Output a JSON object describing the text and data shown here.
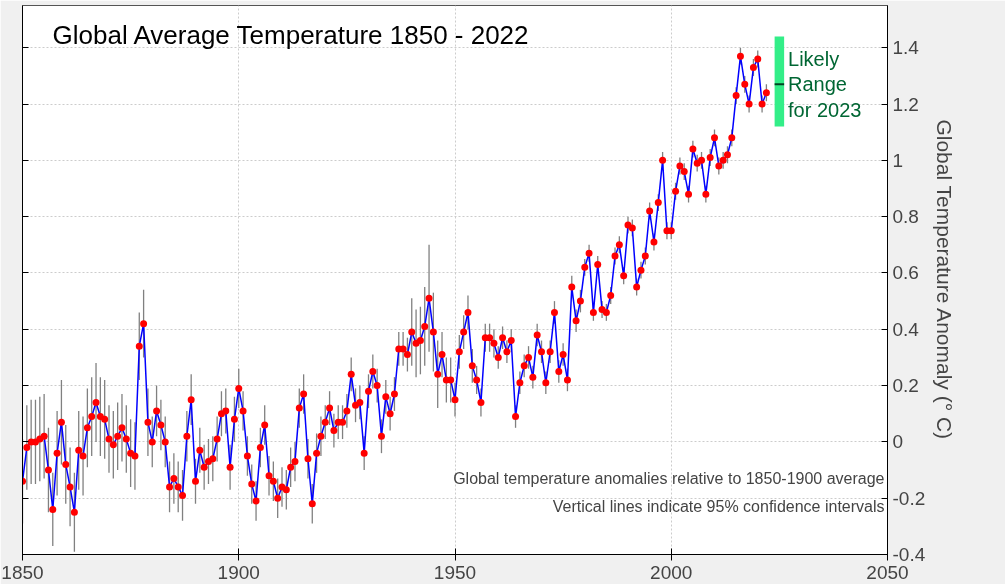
{
  "chart_data": {
    "type": "line",
    "title": "Global Average Temperature 1850 - 2022",
    "ylabel": "Global Temperature Anomaly (° C)",
    "xlim": [
      1850,
      2050
    ],
    "xticks": [
      1850,
      1900,
      1950,
      2000,
      2050
    ],
    "ylim": [
      -0.4,
      1.55
    ],
    "yticks": [
      -0.4,
      -0.2,
      0,
      0.2,
      0.4,
      0.6,
      0.8,
      1,
      1.2,
      1.4
    ],
    "grid": true,
    "marker": "circle",
    "line_style": "solid",
    "annotations": [
      "Global temperature anomalies relative to 1850-1900 average",
      "Vertical lines indicate 95% confidence intervals"
    ],
    "series": [
      {
        "color": "#0000ff",
        "x": [
          1850,
          1851,
          1852,
          1853,
          1854,
          1855,
          1856,
          1857,
          1858,
          1859,
          1860,
          1861,
          1862,
          1863,
          1864,
          1865,
          1866,
          1867,
          1868,
          1869,
          1870,
          1871,
          1872,
          1873,
          1874,
          1875,
          1876,
          1877,
          1878,
          1879,
          1880,
          1881,
          1882,
          1883,
          1884,
          1885,
          1886,
          1887,
          1888,
          1889,
          1890,
          1891,
          1892,
          1893,
          1894,
          1895,
          1896,
          1897,
          1898,
          1899,
          1900,
          1901,
          1902,
          1903,
          1904,
          1905,
          1906,
          1907,
          1908,
          1909,
          1910,
          1911,
          1912,
          1913,
          1914,
          1915,
          1916,
          1917,
          1918,
          1919,
          1920,
          1921,
          1922,
          1923,
          1924,
          1925,
          1926,
          1927,
          1928,
          1929,
          1930,
          1931,
          1932,
          1933,
          1934,
          1935,
          1936,
          1937,
          1938,
          1939,
          1940,
          1941,
          1942,
          1943,
          1944,
          1945,
          1946,
          1947,
          1948,
          1949,
          1950,
          1951,
          1952,
          1953,
          1954,
          1955,
          1956,
          1957,
          1958,
          1959,
          1960,
          1961,
          1962,
          1963,
          1964,
          1965,
          1966,
          1967,
          1968,
          1969,
          1970,
          1971,
          1972,
          1973,
          1974,
          1975,
          1976,
          1977,
          1978,
          1979,
          1980,
          1981,
          1982,
          1983,
          1984,
          1985,
          1986,
          1987,
          1988,
          1989,
          1990,
          1991,
          1992,
          1993,
          1994,
          1995,
          1996,
          1997,
          1998,
          1999,
          2000,
          2001,
          2002,
          2003,
          2004,
          2005,
          2006,
          2007,
          2008,
          2009,
          2010,
          2011,
          2012,
          2013,
          2014,
          2015,
          2016,
          2017,
          2018,
          2019,
          2020,
          2021,
          2022
        ],
        "values": [
          -0.14,
          -0.02,
          0.0,
          0.0,
          0.01,
          0.02,
          -0.1,
          -0.24,
          -0.04,
          0.07,
          -0.08,
          -0.16,
          -0.25,
          -0.03,
          -0.05,
          0.05,
          0.09,
          0.14,
          0.09,
          0.08,
          0.01,
          -0.01,
          0.02,
          0.05,
          0.01,
          -0.04,
          -0.05,
          0.34,
          0.42,
          0.07,
          0.0,
          0.11,
          0.06,
          0.0,
          -0.16,
          -0.13,
          -0.16,
          -0.19,
          0.02,
          0.15,
          -0.14,
          -0.03,
          -0.09,
          -0.07,
          -0.06,
          0.01,
          0.1,
          0.11,
          -0.09,
          0.08,
          0.19,
          0.11,
          -0.05,
          -0.15,
          -0.21,
          -0.02,
          0.06,
          -0.12,
          -0.14,
          -0.2,
          -0.16,
          -0.17,
          -0.09,
          -0.07,
          0.12,
          0.17,
          -0.06,
          -0.22,
          -0.04,
          0.02,
          0.07,
          0.12,
          0.04,
          0.07,
          0.07,
          0.11,
          0.24,
          0.13,
          0.14,
          -0.04,
          0.18,
          0.25,
          0.2,
          0.02,
          0.16,
          0.1,
          0.17,
          0.33,
          0.33,
          0.31,
          0.39,
          0.35,
          0.36,
          0.41,
          0.51,
          0.39,
          0.24,
          0.31,
          0.22,
          0.22,
          0.15,
          0.32,
          0.39,
          0.46,
          0.27,
          0.22,
          0.14,
          0.37,
          0.37,
          0.35,
          0.3,
          0.37,
          0.32,
          0.36,
          0.09,
          0.21,
          0.27,
          0.3,
          0.23,
          0.38,
          0.32,
          0.21,
          0.32,
          0.46,
          0.25,
          0.31,
          0.22,
          0.55,
          0.43,
          0.5,
          0.62,
          0.67,
          0.46,
          0.63,
          0.47,
          0.46,
          0.52,
          0.66,
          0.7,
          0.59,
          0.77,
          0.76,
          0.55,
          0.61,
          0.66,
          0.82,
          0.71,
          0.85,
          1.0,
          0.75,
          0.75,
          0.89,
          0.98,
          0.96,
          0.88,
          1.04,
          0.99,
          1.0,
          0.88,
          1.01,
          1.08,
          0.98,
          1.0,
          1.02,
          1.08,
          1.23,
          1.37,
          1.27,
          1.2,
          1.33,
          1.36,
          1.2,
          1.24
        ],
        "errors": [
          0.15,
          0.15,
          0.15,
          0.15,
          0.15,
          0.15,
          0.15,
          0.13,
          0.15,
          0.15,
          0.14,
          0.14,
          0.14,
          0.14,
          0.14,
          0.14,
          0.14,
          0.14,
          0.14,
          0.14,
          0.12,
          0.12,
          0.12,
          0.12,
          0.12,
          0.12,
          0.12,
          0.12,
          0.12,
          0.12,
          0.09,
          0.09,
          0.09,
          0.09,
          0.09,
          0.09,
          0.09,
          0.09,
          0.09,
          0.09,
          0.08,
          0.08,
          0.08,
          0.08,
          0.08,
          0.08,
          0.08,
          0.08,
          0.08,
          0.08,
          0.07,
          0.07,
          0.07,
          0.07,
          0.07,
          0.07,
          0.07,
          0.07,
          0.07,
          0.07,
          0.07,
          0.07,
          0.07,
          0.07,
          0.07,
          0.07,
          0.07,
          0.07,
          0.07,
          0.07,
          0.06,
          0.06,
          0.06,
          0.06,
          0.06,
          0.06,
          0.06,
          0.06,
          0.06,
          0.06,
          0.06,
          0.06,
          0.06,
          0.06,
          0.06,
          0.06,
          0.06,
          0.06,
          0.06,
          0.06,
          0.12,
          0.12,
          0.12,
          0.14,
          0.19,
          0.14,
          0.12,
          0.08,
          0.08,
          0.08,
          0.06,
          0.06,
          0.06,
          0.06,
          0.06,
          0.05,
          0.05,
          0.05,
          0.05,
          0.05,
          0.04,
          0.04,
          0.04,
          0.04,
          0.04,
          0.04,
          0.04,
          0.04,
          0.04,
          0.04,
          0.04,
          0.04,
          0.04,
          0.04,
          0.04,
          0.04,
          0.04,
          0.04,
          0.04,
          0.04,
          0.03,
          0.03,
          0.03,
          0.03,
          0.03,
          0.03,
          0.03,
          0.03,
          0.03,
          0.03,
          0.03,
          0.03,
          0.03,
          0.03,
          0.03,
          0.03,
          0.03,
          0.03,
          0.03,
          0.03,
          0.03,
          0.03,
          0.03,
          0.03,
          0.03,
          0.03,
          0.03,
          0.03,
          0.03,
          0.03,
          0.03,
          0.03,
          0.03,
          0.03,
          0.03,
          0.03,
          0.03,
          0.03,
          0.03,
          0.03,
          0.03,
          0.03,
          0.03
        ]
      },
      {
        "type": "box",
        "name": "Likely Range for 2023",
        "color": "#33ee88",
        "x": [
          2025
        ],
        "boxes": [
          {
            "low": 1.12,
            "q1": 1.12,
            "median": 1.27,
            "q3": 1.44,
            "high": 1.44
          }
        ]
      }
    ]
  }
}
